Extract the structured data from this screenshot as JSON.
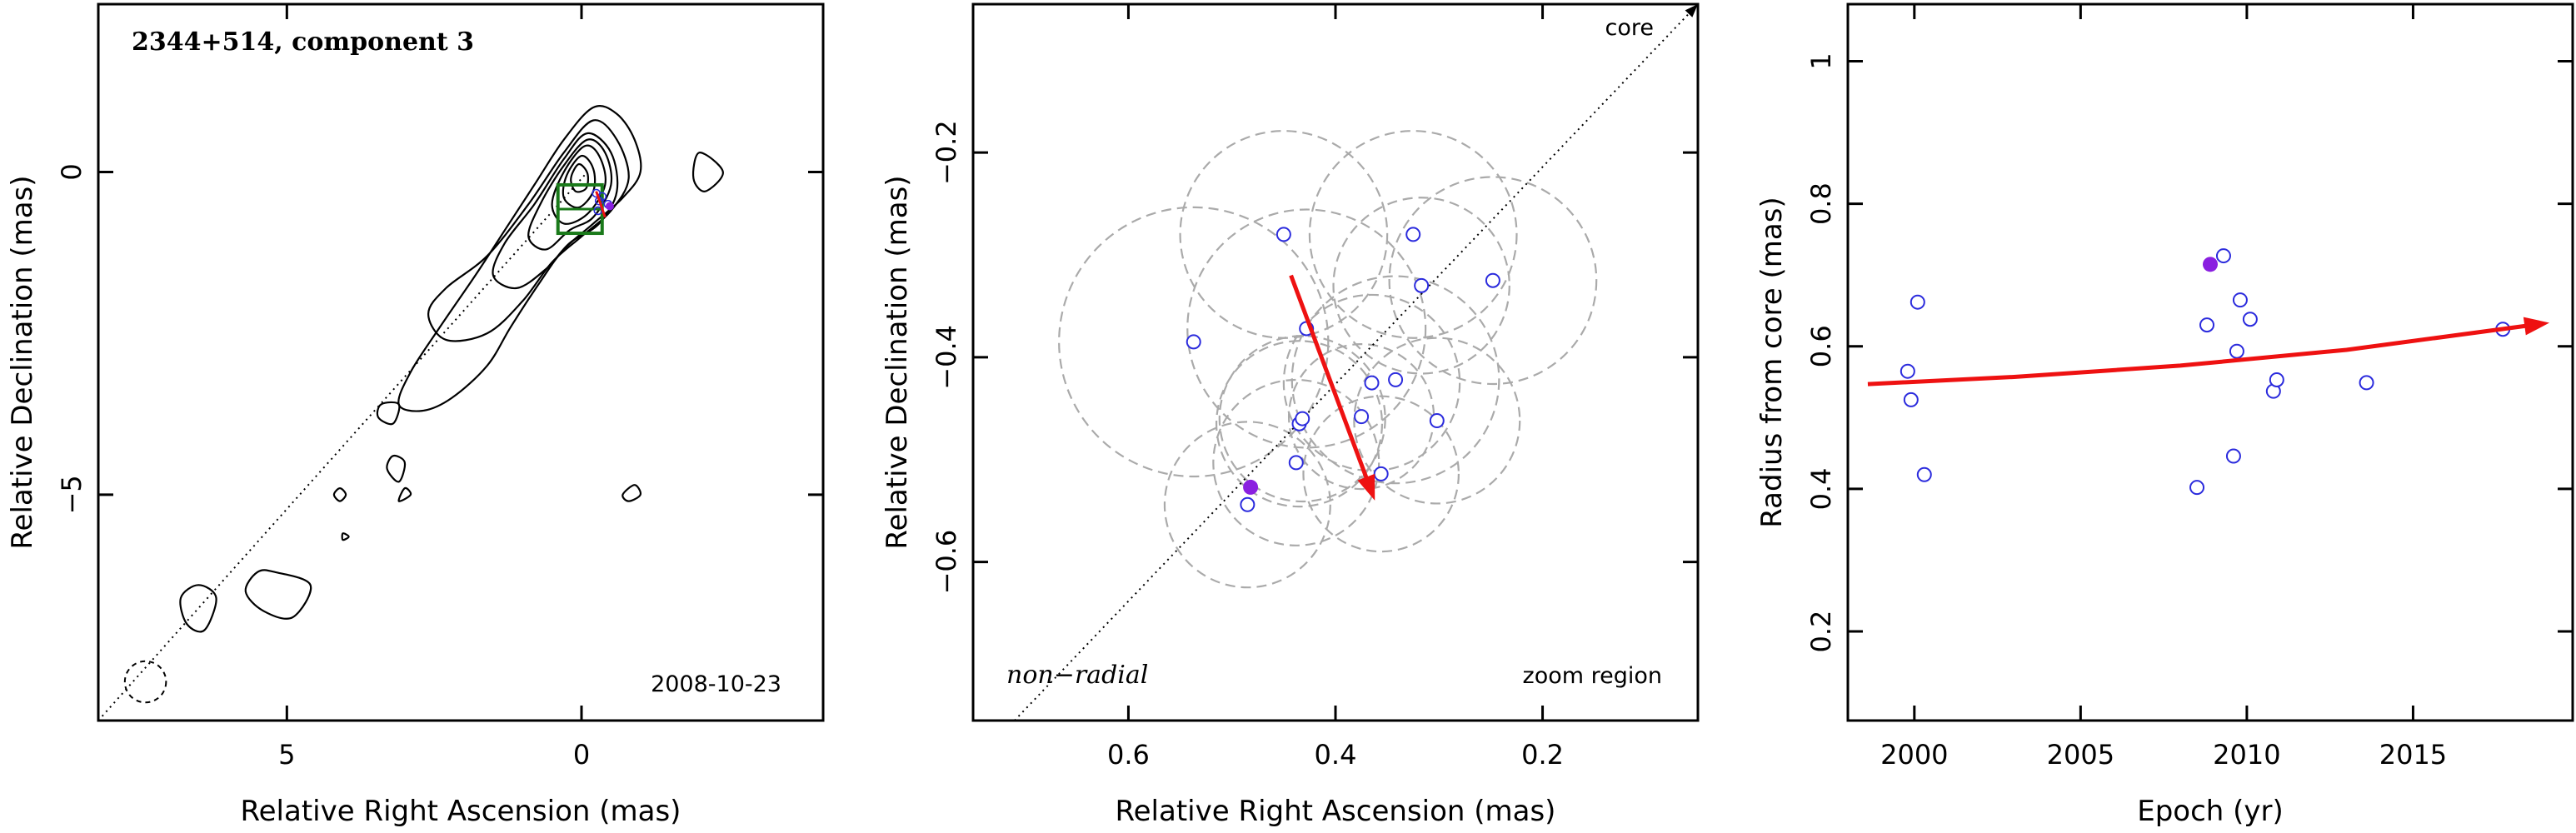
{
  "chart_data": [
    {
      "type": "contour",
      "title": "2344+514, component 3",
      "date_label": "2008-10-23",
      "xlabel": "Relative Right Ascension (mas)",
      "ylabel": "Relative Declination (mas)",
      "xlim": [
        8.2,
        -4.1
      ],
      "ylim": [
        -8.5,
        2.6
      ],
      "xticks": [
        5,
        0
      ],
      "yticks": [
        0,
        -5
      ],
      "component_positions": [
        [
          -0.25,
          -0.33
        ],
        [
          -0.35,
          -0.38
        ],
        [
          -0.3,
          -0.45
        ],
        [
          -0.45,
          -0.5
        ],
        [
          -0.28,
          -0.6
        ]
      ],
      "filled_position": [
        -0.48,
        -0.53
      ],
      "zoom_box": {
        "ra": [
          0.4,
          -0.35
        ],
        "dec": [
          -0.95,
          -0.2
        ]
      },
      "contours": [
        [
          [
            -0.2,
            1.0
          ],
          [
            0.3,
            0.5
          ],
          [
            0.8,
            -0.2
          ],
          [
            1.3,
            -0.9
          ],
          [
            1.8,
            -1.6
          ],
          [
            2.4,
            -2.4
          ],
          [
            2.9,
            -3.1
          ],
          [
            3.1,
            -3.6
          ],
          [
            2.7,
            -3.7
          ],
          [
            2.2,
            -3.5
          ],
          [
            1.6,
            -3.0
          ],
          [
            1.2,
            -2.4
          ],
          [
            0.7,
            -1.7
          ],
          [
            0.3,
            -1.2
          ],
          [
            -0.2,
            -0.8
          ],
          [
            -0.7,
            -0.4
          ],
          [
            -1.0,
            0.0
          ],
          [
            -0.9,
            0.5
          ],
          [
            -0.6,
            0.9
          ]
        ],
        [
          [
            -0.2,
            0.8
          ],
          [
            0.3,
            0.3
          ],
          [
            0.9,
            -0.5
          ],
          [
            1.6,
            -1.3
          ],
          [
            2.3,
            -1.8
          ],
          [
            2.6,
            -2.2
          ],
          [
            2.3,
            -2.6
          ],
          [
            1.6,
            -2.5
          ],
          [
            1.0,
            -2.0
          ],
          [
            0.5,
            -1.4
          ],
          [
            0.0,
            -1.0
          ],
          [
            -0.5,
            -0.6
          ],
          [
            -0.8,
            -0.1
          ],
          [
            -0.6,
            0.5
          ]
        ],
        [
          [
            -0.1,
            0.6
          ],
          [
            0.3,
            0.2
          ],
          [
            0.8,
            -0.5
          ],
          [
            1.3,
            -1.1
          ],
          [
            1.5,
            -1.6
          ],
          [
            1.1,
            -1.8
          ],
          [
            0.6,
            -1.5
          ],
          [
            0.2,
            -1.1
          ],
          [
            -0.3,
            -0.8
          ],
          [
            -0.6,
            -0.3
          ],
          [
            -0.5,
            0.3
          ]
        ],
        [
          [
            -0.1,
            0.5
          ],
          [
            0.3,
            0.1
          ],
          [
            0.7,
            -0.5
          ],
          [
            0.9,
            -1.0
          ],
          [
            0.6,
            -1.2
          ],
          [
            0.2,
            -0.9
          ],
          [
            -0.2,
            -0.7
          ],
          [
            -0.5,
            -0.2
          ],
          [
            -0.4,
            0.3
          ]
        ],
        [
          [
            -0.05,
            0.4
          ],
          [
            0.3,
            0.0
          ],
          [
            0.5,
            -0.5
          ],
          [
            0.3,
            -0.8
          ],
          [
            -0.1,
            -0.65
          ],
          [
            -0.4,
            -0.2
          ],
          [
            -0.3,
            0.25
          ]
        ],
        [
          [
            0.0,
            0.25
          ],
          [
            0.25,
            -0.05
          ],
          [
            0.3,
            -0.4
          ],
          [
            0.05,
            -0.55
          ],
          [
            -0.2,
            -0.3
          ],
          [
            -0.2,
            0.05
          ]
        ],
        [
          [
            0.05,
            0.12
          ],
          [
            0.18,
            -0.1
          ],
          [
            0.1,
            -0.3
          ],
          [
            -0.08,
            -0.25
          ],
          [
            -0.1,
            -0.02
          ]
        ],
        [
          [
            -2.0,
            0.3
          ],
          [
            -2.4,
            0.0
          ],
          [
            -2.1,
            -0.3
          ],
          [
            -1.9,
            -0.1
          ]
        ],
        [
          [
            3.4,
            -3.6
          ],
          [
            3.1,
            -3.6
          ],
          [
            3.2,
            -3.9
          ],
          [
            3.45,
            -3.8
          ]
        ],
        [
          [
            3.2,
            -4.4
          ],
          [
            3.0,
            -4.5
          ],
          [
            3.1,
            -4.8
          ],
          [
            3.3,
            -4.6
          ]
        ],
        [
          [
            3.0,
            -4.9
          ],
          [
            2.9,
            -5.0
          ],
          [
            3.1,
            -5.1
          ]
        ],
        [
          [
            4.1,
            -4.9
          ],
          [
            4.0,
            -5.0
          ],
          [
            4.1,
            -5.1
          ],
          [
            4.2,
            -5.0
          ]
        ],
        [
          [
            -0.9,
            -4.85
          ],
          [
            -0.7,
            -5.0
          ],
          [
            -0.8,
            -5.1
          ],
          [
            -1.0,
            -5.0
          ]
        ],
        [
          [
            5.2,
            -6.2
          ],
          [
            4.6,
            -6.4
          ],
          [
            4.9,
            -6.9
          ],
          [
            5.4,
            -6.8
          ],
          [
            5.7,
            -6.5
          ],
          [
            5.5,
            -6.2
          ]
        ],
        [
          [
            6.5,
            -6.4
          ],
          [
            6.2,
            -6.6
          ],
          [
            6.4,
            -7.1
          ],
          [
            6.7,
            -7.0
          ],
          [
            6.8,
            -6.6
          ]
        ],
        [
          [
            4.05,
            -5.6
          ],
          [
            3.95,
            -5.65
          ],
          [
            4.05,
            -5.7
          ]
        ]
      ],
      "dotted_line": [
        [
          8.2,
          -8.5
        ],
        [
          -0.1,
          0.0
        ]
      ],
      "beam": {
        "ra": 7.4,
        "dec": -7.9,
        "r": 0.35
      }
    },
    {
      "type": "scatter",
      "xlabel": "Relative Right Ascension (mas)",
      "ylabel": "Relative Declination (mas)",
      "xlim": [
        0.75,
        0.05
      ],
      "ylim": [
        -0.755,
        -0.055
      ],
      "xticks": [
        0.6,
        0.4,
        0.2
      ],
      "yticks": [
        -0.2,
        -0.4,
        -0.6
      ],
      "corner_labels": {
        "core": "core",
        "non_radial": "non−radial",
        "zoom": "zoom region"
      },
      "points": [
        [
          0.45,
          -0.28,
          0.1
        ],
        [
          0.325,
          -0.28,
          0.1
        ],
        [
          0.317,
          -0.33,
          0.085
        ],
        [
          0.248,
          -0.325,
          0.1
        ],
        [
          0.537,
          -0.385,
          0.13
        ],
        [
          0.428,
          -0.372,
          0.115
        ],
        [
          0.365,
          -0.425,
          0.085
        ],
        [
          0.342,
          -0.422,
          0.1
        ],
        [
          0.302,
          -0.462,
          0.08
        ],
        [
          0.435,
          -0.465,
          0.08
        ],
        [
          0.432,
          -0.46,
          0.08
        ],
        [
          0.375,
          -0.458,
          0.07
        ],
        [
          0.438,
          -0.503,
          0.08
        ],
        [
          0.356,
          -0.514,
          0.075
        ],
        [
          0.485,
          -0.544,
          0.08
        ]
      ],
      "filled_point": [
        0.482,
        -0.527
      ],
      "arrow": {
        "from": [
          0.443,
          -0.32
        ],
        "to": [
          0.362,
          -0.54
        ]
      },
      "dotted_line": [
        [
          0.71,
          -0.755
        ],
        [
          0.05,
          -0.055
        ]
      ]
    },
    {
      "type": "scatter",
      "xlabel": "Epoch (yr)",
      "ylabel": "Radius from core (mas)",
      "xlim": [
        1998.0,
        2019.8
      ],
      "ylim": [
        0.075,
        1.08
      ],
      "xticks": [
        2000,
        2005,
        2010,
        2015
      ],
      "yticks": [
        0.2,
        0.4,
        0.6,
        0.8,
        1
      ],
      "points": [
        [
          1999.8,
          0.565
        ],
        [
          1999.9,
          0.525
        ],
        [
          2000.1,
          0.662
        ],
        [
          2000.3,
          0.42
        ],
        [
          2008.5,
          0.402
        ],
        [
          2008.8,
          0.63
        ],
        [
          2009.3,
          0.727
        ],
        [
          2009.6,
          0.446
        ],
        [
          2009.7,
          0.593
        ],
        [
          2009.8,
          0.665
        ],
        [
          2010.1,
          0.638
        ],
        [
          2010.8,
          0.537
        ],
        [
          2010.9,
          0.553
        ],
        [
          2013.6,
          0.549
        ],
        [
          2017.7,
          0.624
        ]
      ],
      "filled_point": [
        2008.9,
        0.715
      ],
      "fit_curve": [
        [
          1998.6,
          0.547
        ],
        [
          2003,
          0.557
        ],
        [
          2008,
          0.573
        ],
        [
          2013,
          0.595
        ],
        [
          2019.1,
          0.633
        ]
      ]
    }
  ],
  "colors": {
    "axis": "#000000",
    "points": "#2b2bdd",
    "filled": "#8a1fe0",
    "arrow": "#ee1111",
    "circles": "#aaaaaa",
    "box": "#1a7a1a"
  }
}
